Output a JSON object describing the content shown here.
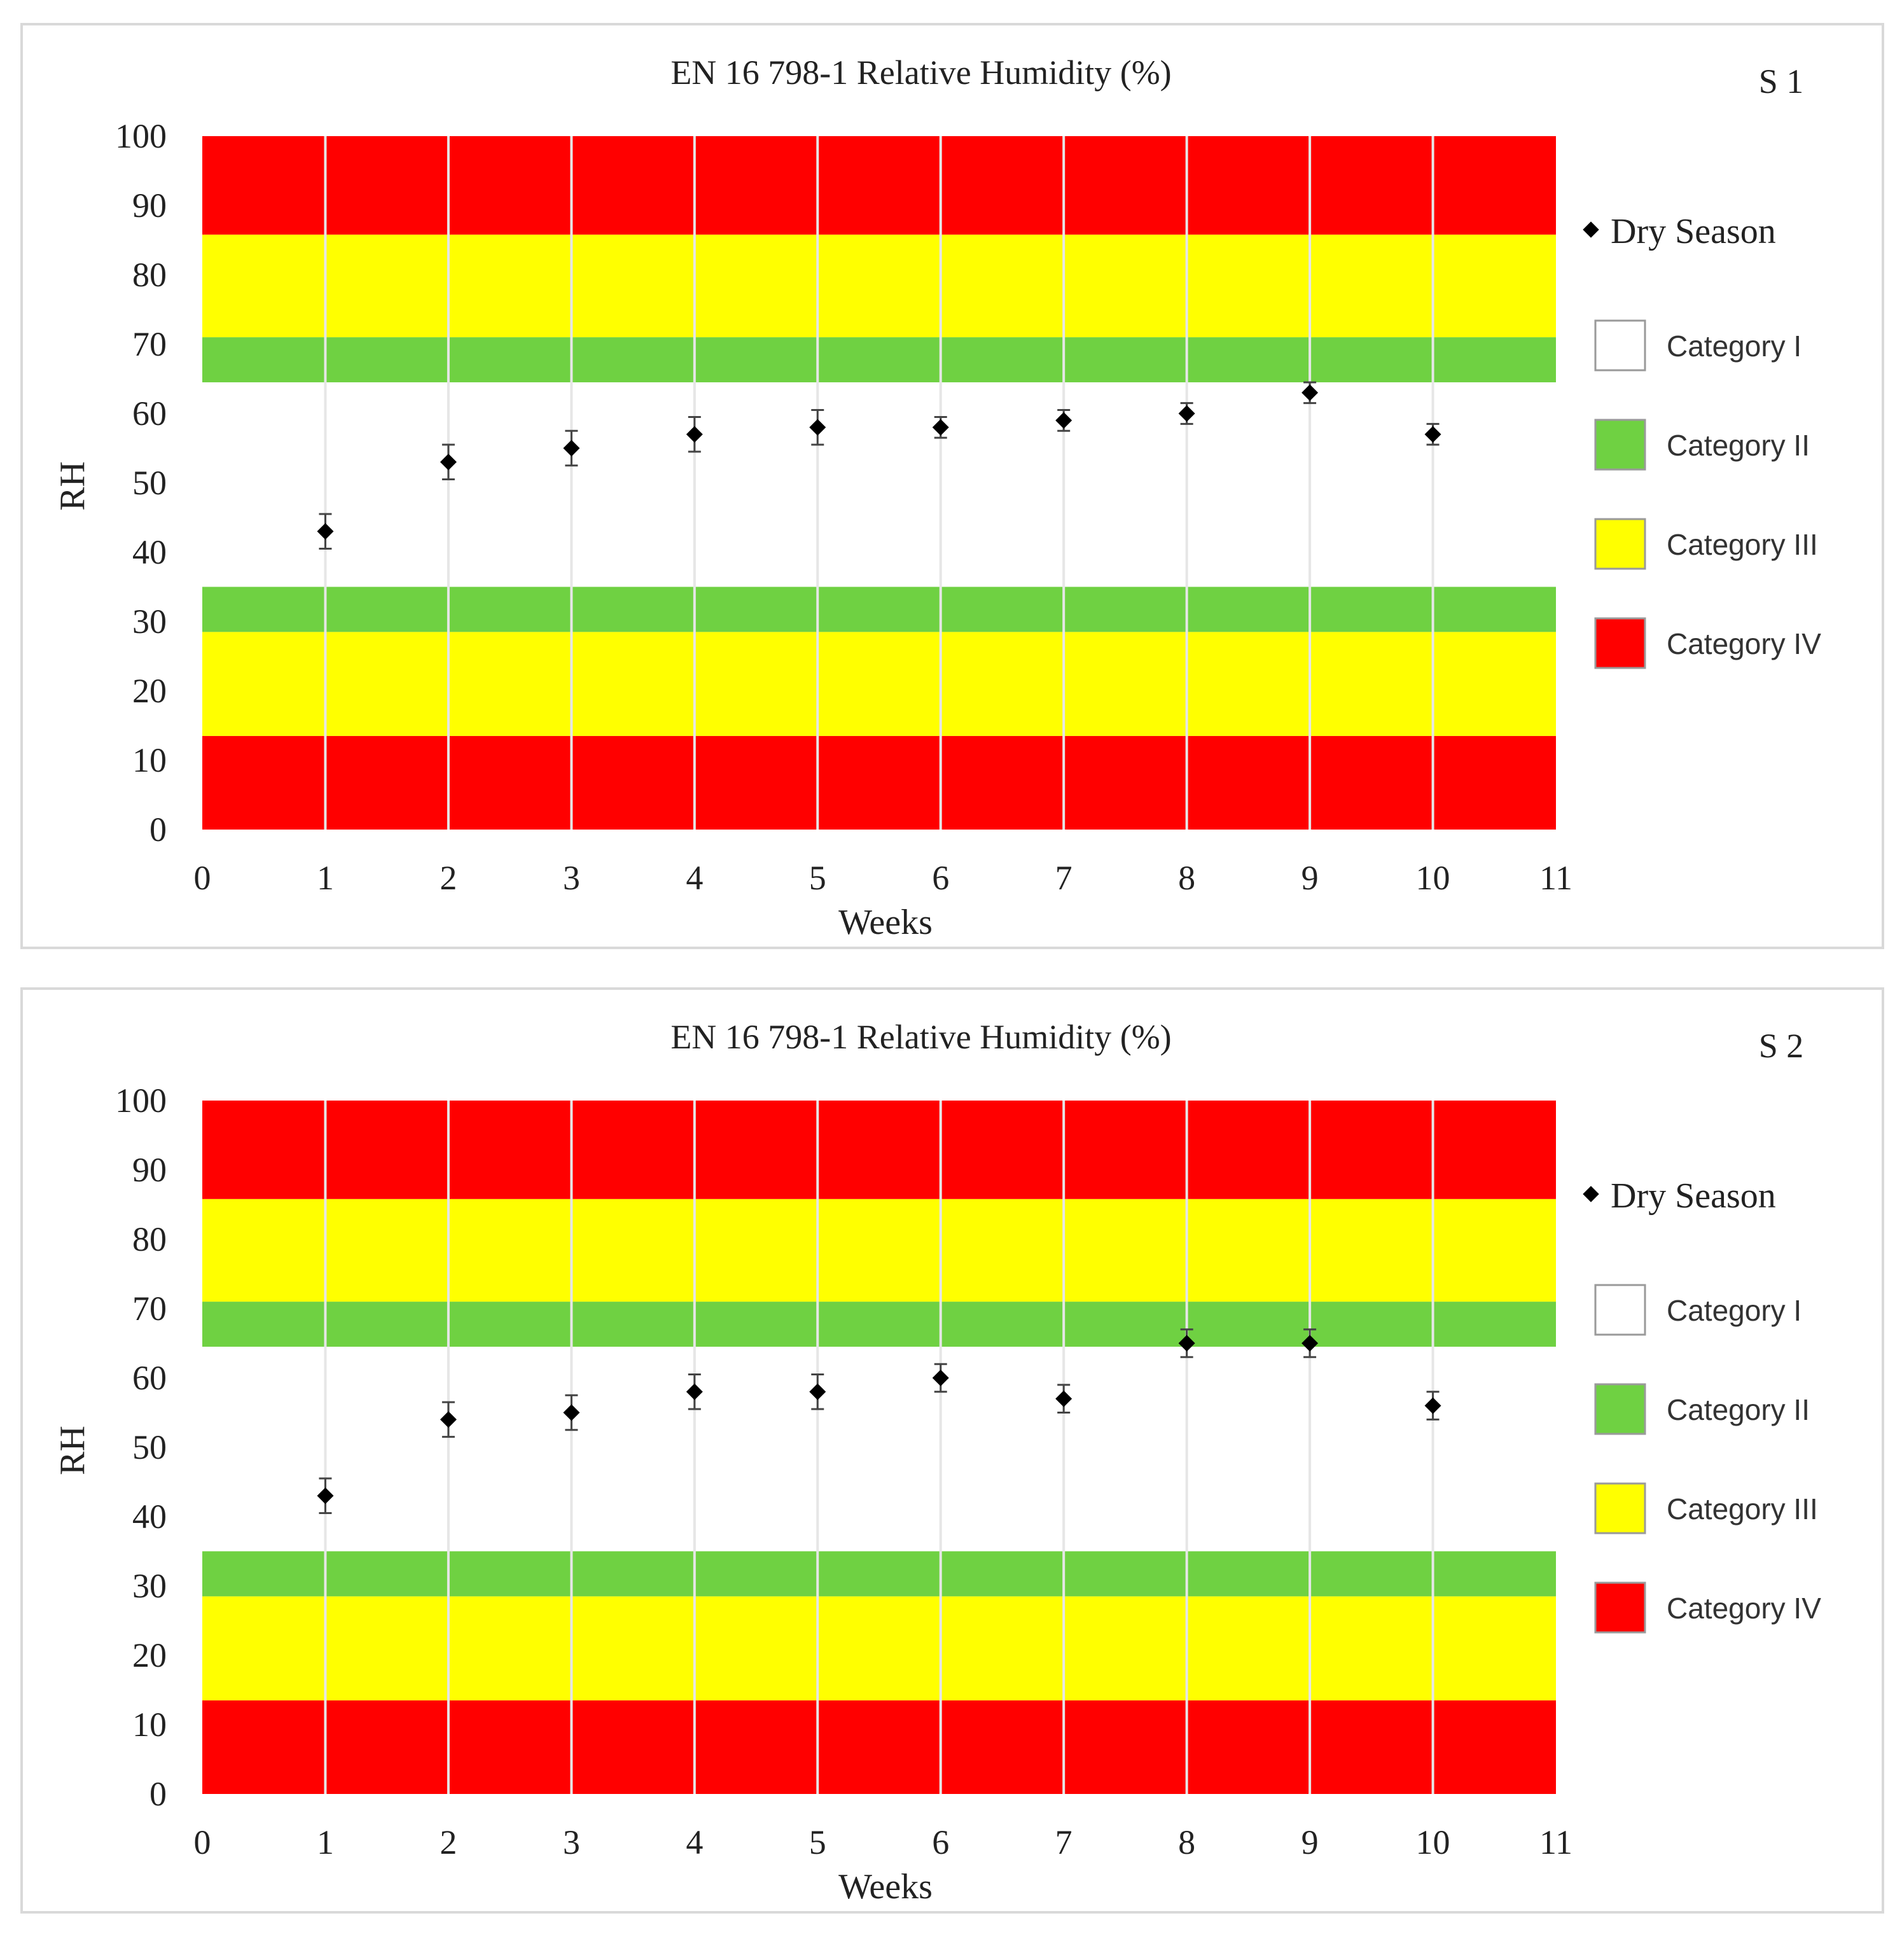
{
  "chart_data": [
    {
      "id": "s1",
      "type": "scatter",
      "title": "EN 16 798-1 Relative Humidity  (%)",
      "panel_label": "S 1",
      "xlabel": "Weeks",
      "ylabel": "RH",
      "xlim": [
        0,
        11
      ],
      "ylim": [
        0,
        100
      ],
      "xticks": [
        "0",
        "1",
        "2",
        "3",
        "4",
        "5",
        "6",
        "7",
        "8",
        "9",
        "10",
        "11"
      ],
      "yticks": [
        "0",
        "10",
        "20",
        "30",
        "40",
        "50",
        "60",
        "70",
        "80",
        "90",
        "100"
      ],
      "bands": [
        {
          "from": 0,
          "to": 13.5,
          "category": "Category IV"
        },
        {
          "from": 13.5,
          "to": 28.5,
          "category": "Category III"
        },
        {
          "from": 28.5,
          "to": 35,
          "category": "Category II"
        },
        {
          "from": 35,
          "to": 64.5,
          "category": "Category I"
        },
        {
          "from": 64.5,
          "to": 71,
          "category": "Category II"
        },
        {
          "from": 71,
          "to": 85.8,
          "category": "Category III"
        },
        {
          "from": 85.8,
          "to": 100,
          "category": "Category IV"
        }
      ],
      "series": [
        {
          "name": "Dry Season",
          "x": [
            1,
            2,
            3,
            4,
            5,
            6,
            7,
            8,
            9,
            10
          ],
          "y": [
            43,
            53,
            55,
            57,
            58,
            58,
            59,
            60,
            63,
            57
          ],
          "err": [
            2.5,
            2.5,
            2.5,
            2.5,
            2.5,
            1.5,
            1.5,
            1.5,
            1.5,
            1.5
          ]
        }
      ]
    },
    {
      "id": "s2",
      "type": "scatter",
      "title": "EN 16 798-1 Relative Humidity  (%)",
      "panel_label": "S 2",
      "xlabel": "Weeks",
      "ylabel": "RH",
      "xlim": [
        0,
        11
      ],
      "ylim": [
        0,
        100
      ],
      "xticks": [
        "0",
        "1",
        "2",
        "3",
        "4",
        "5",
        "6",
        "7",
        "8",
        "9",
        "10",
        "11"
      ],
      "yticks": [
        "0",
        "10",
        "20",
        "30",
        "40",
        "50",
        "60",
        "70",
        "80",
        "90",
        "100"
      ],
      "bands": [
        {
          "from": 0,
          "to": 13.5,
          "category": "Category IV"
        },
        {
          "from": 13.5,
          "to": 28.5,
          "category": "Category III"
        },
        {
          "from": 28.5,
          "to": 35,
          "category": "Category II"
        },
        {
          "from": 35,
          "to": 64.5,
          "category": "Category I"
        },
        {
          "from": 64.5,
          "to": 71,
          "category": "Category II"
        },
        {
          "from": 71,
          "to": 85.8,
          "category": "Category III"
        },
        {
          "from": 85.8,
          "to": 100,
          "category": "Category IV"
        }
      ],
      "series": [
        {
          "name": "Dry Season",
          "x": [
            1,
            2,
            3,
            4,
            5,
            6,
            7,
            8,
            9,
            10
          ],
          "y": [
            43,
            54,
            55,
            58,
            58,
            60,
            57,
            65,
            65,
            56
          ],
          "err": [
            2.5,
            2.5,
            2.5,
            2.5,
            2.5,
            2,
            2,
            2,
            2,
            2
          ]
        }
      ]
    }
  ],
  "legend": {
    "series_label": "Dry Season",
    "items": [
      {
        "label": "Category I",
        "color": "#ffffff"
      },
      {
        "label": "Category II",
        "color": "#6fd142"
      },
      {
        "label": "Category III",
        "color": "#ffff00"
      },
      {
        "label": "Category IV",
        "color": "#ff0000"
      }
    ]
  },
  "colors": {
    "Category I": "#ffffff",
    "Category II": "#6fd142",
    "Category III": "#ffff00",
    "Category IV": "#ff0000",
    "marker": "#000000",
    "gridline": "#e6e6e6",
    "frame": "#d9d9d9"
  }
}
